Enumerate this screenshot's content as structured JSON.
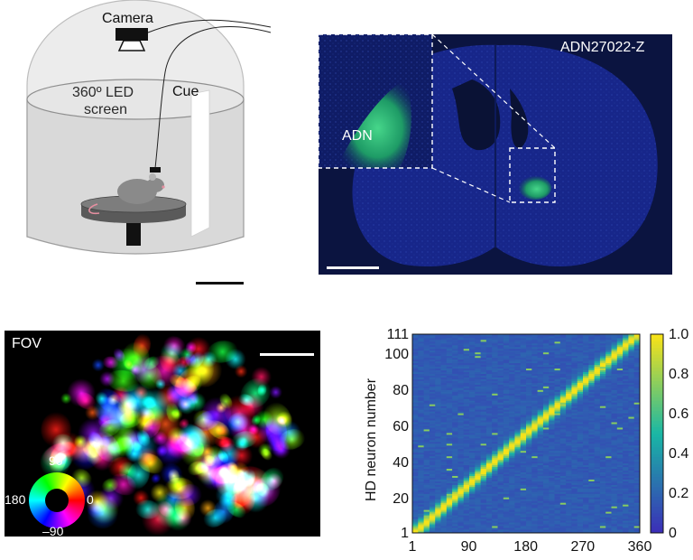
{
  "setup": {
    "camera_label": "Camera",
    "screen_label_line1": "360º LED",
    "screen_label_line2": "screen",
    "cue_label": "Cue"
  },
  "histology": {
    "id_label": "ADN27022-Z",
    "region_label": "ADN"
  },
  "fov": {
    "label": "FOV",
    "wheel_top": "90",
    "wheel_left": "180",
    "wheel_right": "0",
    "wheel_bottom": "–90"
  },
  "heatmap": {
    "ylabel": "HD neuron number",
    "colors": {
      "low": "#3b2fb8",
      "mid": "#19b7a5",
      "high": "#f6e21a"
    }
  },
  "chart_data": {
    "type": "heatmap",
    "xlabel": "",
    "ylabel": "HD neuron number",
    "x_ticks": [
      "1",
      "90",
      "180",
      "270",
      "360"
    ],
    "y_ticks": [
      "1",
      "20",
      "40",
      "60",
      "80",
      "100",
      "111"
    ],
    "xlim": [
      1,
      360
    ],
    "ylim": [
      1,
      111
    ],
    "colorbar_ticks": [
      "0",
      "0.2",
      "0.4",
      "0.6",
      "0.8",
      "1.0"
    ],
    "colorbar_range": [
      0,
      1.0
    ],
    "n_neurons": 111,
    "preferred_direction_trend": "diagonal from (1,1) to (360,111)"
  }
}
